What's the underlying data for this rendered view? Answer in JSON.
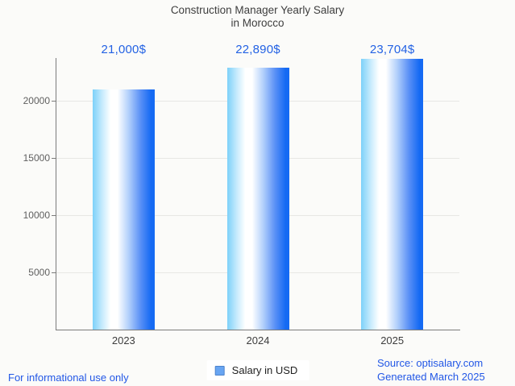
{
  "chart_data": {
    "type": "bar",
    "title_line1": "Construction Manager Yearly Salary",
    "title_line2": "in Morocco",
    "categories": [
      "2023",
      "2024",
      "2025"
    ],
    "values": [
      21000,
      22890,
      23704
    ],
    "value_labels": [
      "21,000$",
      "22,890$",
      "23,704$"
    ],
    "y_ticks": [
      5000,
      10000,
      15000,
      20000
    ],
    "ylim": [
      0,
      23750
    ],
    "grid": true,
    "xlabel": "",
    "ylabel": "",
    "legend": "Salary in USD",
    "legend_position": "bottom-center"
  },
  "footer": {
    "left": "For informational use only",
    "source_line1": "Source: optisalary.com",
    "source_line2": "Generated March 2025"
  },
  "colors": {
    "background": "#fbfbf9",
    "title_text": "#3e3e3e",
    "axis_line": "#7b7b7b",
    "gridline": "#e7e7e4",
    "y_tick_text": "#5f5f5f",
    "x_tick_text": "#3d3d3d",
    "value_label_blue": "#2362e4",
    "footer_blue": "#2257e6",
    "bar_gradient_left": "#7dd1f9",
    "bar_gradient_mid": "#ffffff",
    "bar_gradient_right": "#156af3",
    "legend_swatch_fill": "#68a5f2",
    "legend_swatch_border": "#4d83cc"
  }
}
